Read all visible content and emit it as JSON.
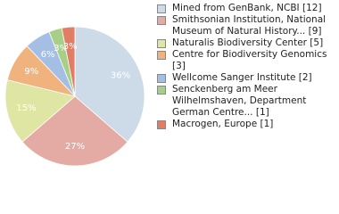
{
  "chart_data": {
    "type": "pie",
    "categories": [
      "Mined from GenBank, NCBI [12]",
      "Smithsonian Institution, National Museum of Natural History... [9]",
      "Naturalis Biodiversity Center [5]",
      "Centre for Biodiversity Genomics [3]",
      "Wellcome Sanger Institute [2]",
      "Senckenberg am Meer Wilhelmshaven, Department German Centre... [1]",
      "Macrogen, Europe [1]"
    ],
    "values": [
      36,
      27,
      15,
      9,
      6,
      3,
      3
    ],
    "value_labels": [
      "36%",
      "27%",
      "15%",
      "9%",
      "6%",
      "3%",
      "3%"
    ],
    "colors": [
      "#cddbe8",
      "#e3aba3",
      "#dfe5a3",
      "#f1b37e",
      "#a4bee4",
      "#a7cf88",
      "#e07d65"
    ],
    "legend": "right"
  }
}
